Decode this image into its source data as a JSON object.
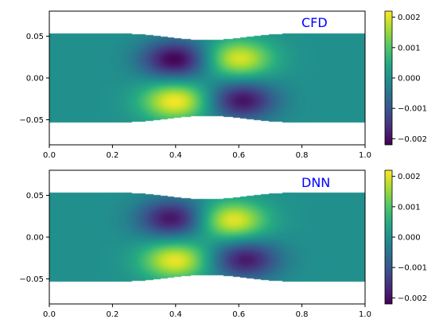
{
  "chart_data": [
    {
      "type": "heatmap",
      "label": "CFD",
      "xlim": [
        0.0,
        1.0
      ],
      "ylim": [
        -0.08,
        0.08
      ],
      "x_ticks": [
        "0.0",
        "0.2",
        "0.4",
        "0.6",
        "0.8",
        "1.0"
      ],
      "y_ticks": [
        "0.05",
        "0.00",
        "−0.05"
      ],
      "colorbar": {
        "range": [
          -0.0022,
          0.0022
        ],
        "ticks": [
          "0.002",
          "0.001",
          "0.000",
          "−0.001",
          "−0.002"
        ],
        "colormap": "viridis"
      },
      "domain": {
        "half_height": 0.053,
        "constriction_center_x": 0.5,
        "constriction_depth": 0.0075,
        "constriction_width": 0.26
      },
      "blobs": [
        {
          "x": 0.4,
          "y": 0.022,
          "value": -0.0022
        },
        {
          "x": 0.4,
          "y": -0.028,
          "value": 0.0022
        },
        {
          "x": 0.6,
          "y": 0.023,
          "value": 0.002
        },
        {
          "x": 0.61,
          "y": -0.027,
          "value": -0.002
        }
      ]
    },
    {
      "type": "heatmap",
      "label": "DNN",
      "xlim": [
        0.0,
        1.0
      ],
      "ylim": [
        -0.08,
        0.08
      ],
      "x_ticks": [
        "0.0",
        "0.2",
        "0.4",
        "0.6",
        "0.8",
        "1.0"
      ],
      "y_ticks": [
        "0.05",
        "0.00",
        "−0.05"
      ],
      "colorbar": {
        "range": [
          -0.0022,
          0.0022
        ],
        "ticks": [
          "0.002",
          "0.001",
          "0.000",
          "−0.001",
          "−0.002"
        ],
        "colormap": "viridis"
      },
      "domain": {
        "half_height": 0.053,
        "constriction_center_x": 0.5,
        "constriction_depth": 0.0075,
        "constriction_width": 0.26
      },
      "blobs": [
        {
          "x": 0.39,
          "y": 0.022,
          "value": -0.002
        },
        {
          "x": 0.4,
          "y": -0.028,
          "value": 0.0021
        },
        {
          "x": 0.58,
          "y": 0.02,
          "value": 0.0021
        },
        {
          "x": 0.62,
          "y": -0.027,
          "value": -0.0019
        }
      ]
    }
  ]
}
